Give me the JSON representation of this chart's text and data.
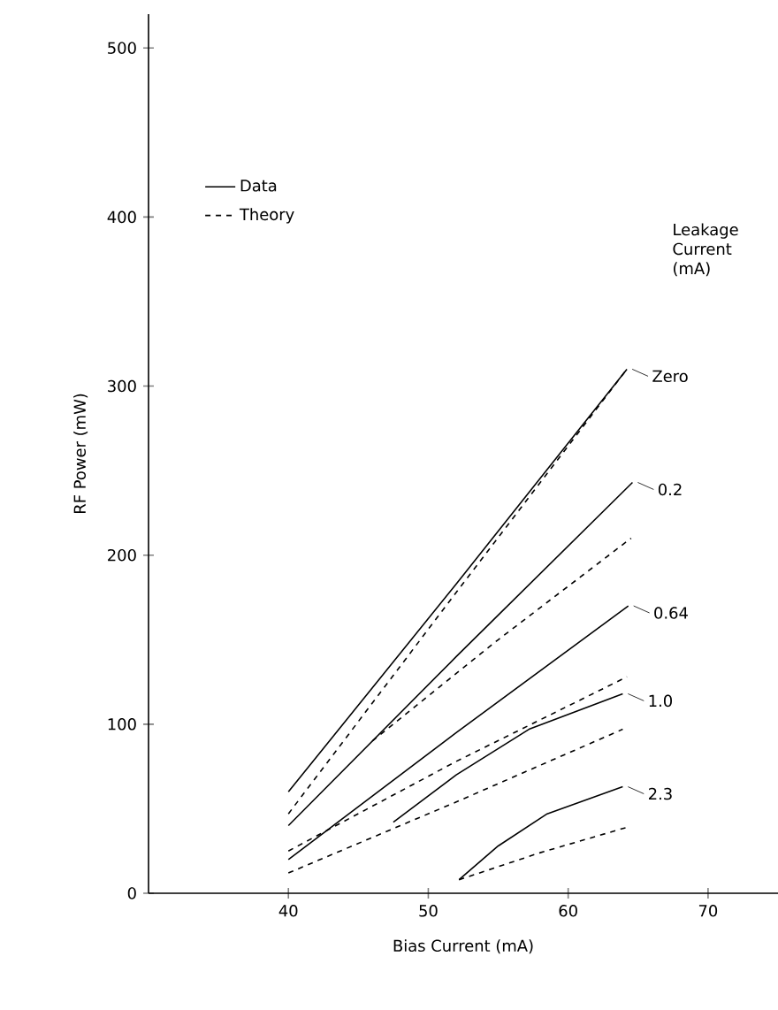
{
  "chart_data": {
    "type": "line",
    "xlabel": "Bias Current (mA)",
    "ylabel": "RF Power (mW)",
    "xlim": [
      30,
      75
    ],
    "ylim": [
      0,
      520
    ],
    "xticks": [
      40,
      50,
      60,
      70
    ],
    "yticks": [
      0,
      100,
      200,
      300,
      400,
      500
    ],
    "grid": false,
    "legend": "top left",
    "marker": "none",
    "series": [
      {
        "name": "Data",
        "color": "#000000",
        "line_style": "solid",
        "x": [
          40,
          52,
          64.2
        ],
        "values": [
          60,
          183,
          310
        ]
      },
      {
        "name": "Theory",
        "color": "#000000",
        "line_style": "dashed",
        "x": [
          40,
          52,
          64.2
        ],
        "values": [
          47,
          178,
          310
        ]
      },
      {
        "color": "#000000",
        "line_style": "solid",
        "x": [
          40,
          52,
          64.6
        ],
        "values": [
          40,
          140,
          243
        ]
      },
      {
        "color": "#000000",
        "line_style": "dashed",
        "x": [
          46,
          55,
          64.5
        ],
        "values": [
          90,
          150,
          210
        ]
      },
      {
        "color": "#000000",
        "line_style": "solid",
        "x": [
          40,
          52,
          64.3
        ],
        "values": [
          20,
          95,
          170
        ]
      },
      {
        "color": "#000000",
        "line_style": "dashed",
        "x": [
          40,
          52,
          64.2
        ],
        "values": [
          25,
          78,
          128
        ]
      },
      {
        "color": "#000000",
        "line_style": "solid",
        "x": [
          47.5,
          52,
          57.2,
          63.9
        ],
        "values": [
          42,
          70,
          97,
          118
        ]
      },
      {
        "color": "#000000",
        "line_style": "dashed",
        "x": [
          40,
          52,
          63.9
        ],
        "values": [
          12,
          54,
          97
        ]
      },
      {
        "color": "#000000",
        "line_style": "solid",
        "x": [
          52.2,
          55,
          58.5,
          63.9
        ],
        "values": [
          8,
          28,
          47,
          63
        ]
      },
      {
        "color": "#000000",
        "line_style": "dashed",
        "x": [
          52.2,
          58,
          64.2
        ],
        "values": [
          8,
          24,
          39
        ]
      }
    ],
    "annotations": [
      "Leakage Current (mA)",
      {
        "text": "Zero",
        "x": 64.2,
        "y": 310
      },
      {
        "text": "0.2",
        "x": 64.6,
        "y": 243
      },
      {
        "text": "0.64",
        "x": 64.3,
        "y": 170
      },
      {
        "text": "1.0",
        "x": 63.9,
        "y": 118
      },
      {
        "text": "2.3",
        "x": 63.9,
        "y": 63
      }
    ]
  }
}
